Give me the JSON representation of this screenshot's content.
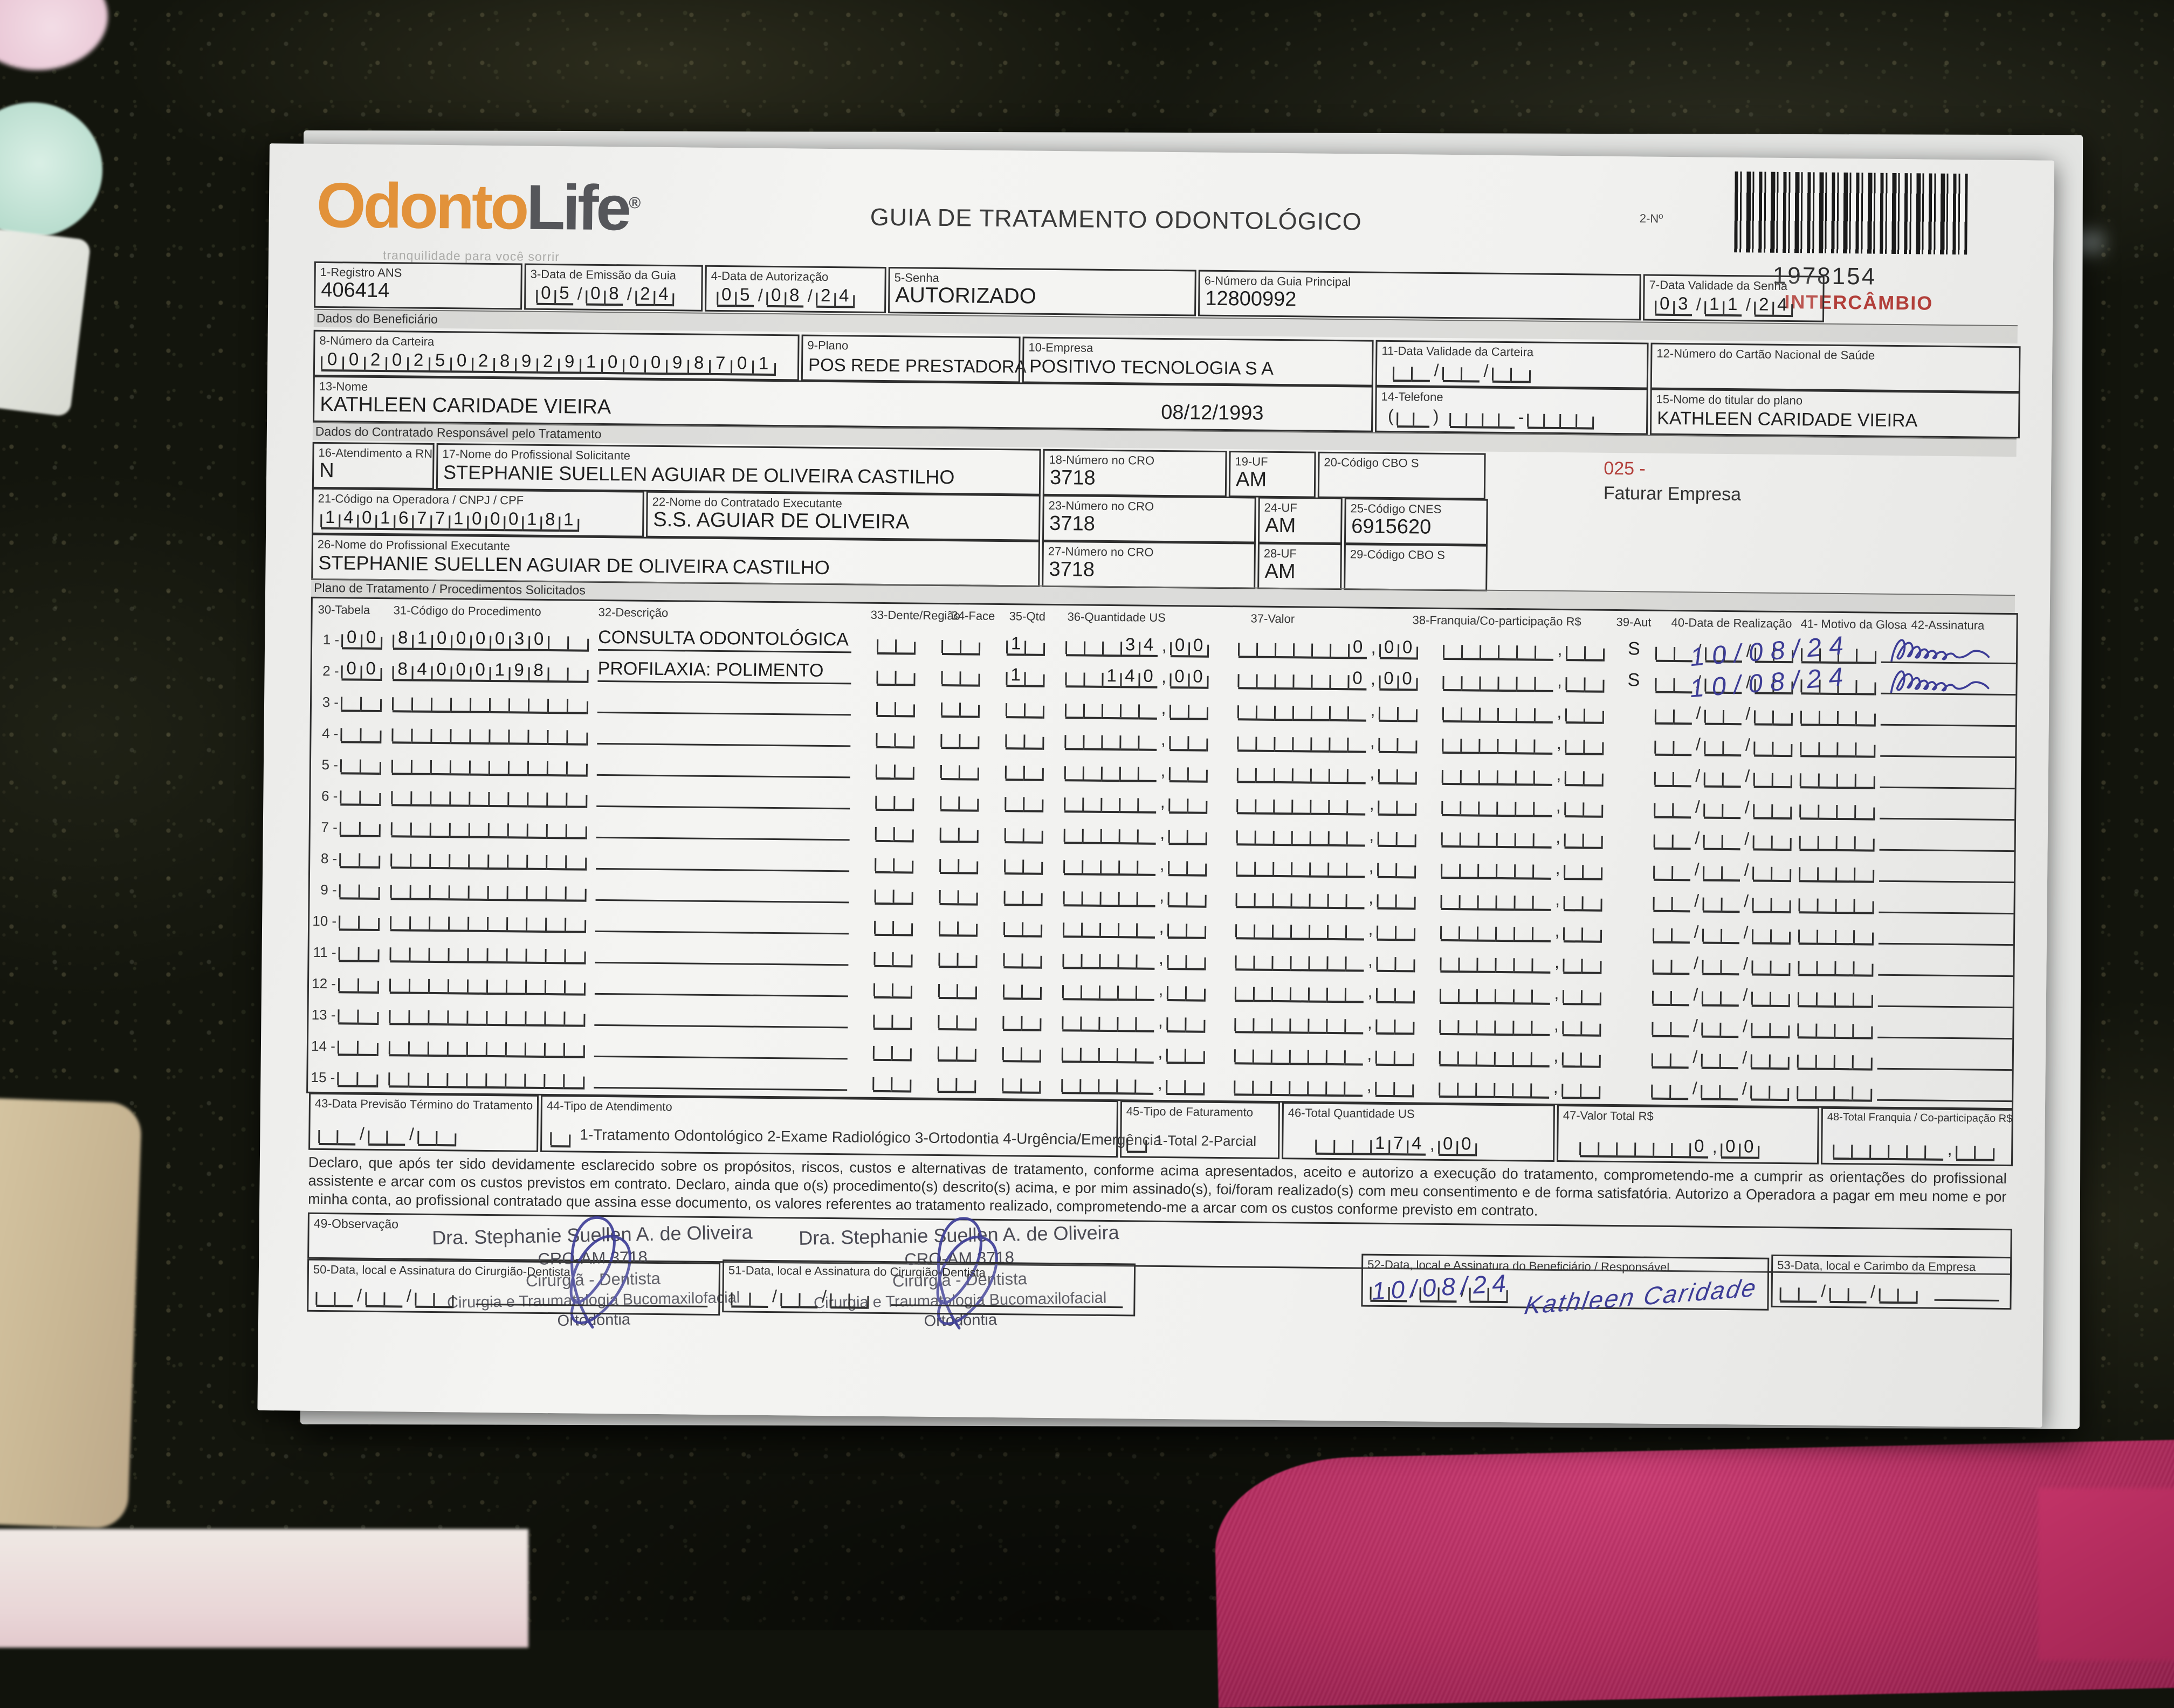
{
  "header": {
    "logo_odonto": "Odonto",
    "logo_life": "Life",
    "logo_reg": "®",
    "tagline": "tranquilidade para você sorrir",
    "title": "GUIA DE TRATAMENTO ODONTOLÓGICO",
    "doc_number_label": "2-Nº",
    "doc_number": "1978154",
    "stamp_intercambio": "INTERCÂMBIO"
  },
  "row1": {
    "f1_label": "1-Registro ANS",
    "f1_value": "406414",
    "f3_label": "3-Data de Emissão da Guia",
    "f3_value": "05/08/24",
    "f4_label": "4-Data de Autorização",
    "f4_value": "05/08/24",
    "f5_label": "5-Senha",
    "f5_value": "AUTORIZADO",
    "f6_label": "6-Número da Guia Principal",
    "f6_value": "12800992",
    "f7_label": "7-Data Validade da Senha",
    "f7_value": "03/11/24"
  },
  "beneficiario": {
    "section_label": "Dados do Beneficiário",
    "f8_label": "8-Número da Carteira",
    "f8_value": "002025028929100098701",
    "f9_label": "9-Plano",
    "f9_value": "POS REDE PRESTADORA",
    "f10_label": "10-Empresa",
    "f10_value": "POSITIVO TECNOLOGIA S A",
    "f11_label": "11-Data Validade da Carteira",
    "f11_value": "__/__/__",
    "f12_label": "12-Número do Cartão Nacional de Saúde",
    "f13_label": "13-Nome",
    "f13_value": "KATHLEEN CARIDADE VIEIRA",
    "f13_date": "08/12/1993",
    "f14_label": "14-Telefone",
    "f14_value": "(__) ____-____",
    "f15_label": "15-Nome do titular do plano",
    "f15_value": "KATHLEEN CARIDADE VIEIRA"
  },
  "contratado": {
    "section_label": "Dados do Contratado Responsável pelo Tratamento",
    "f16_label": "16-Atendimento a RN",
    "f16_value": "N",
    "f17_label": "17-Nome do Profissional Solicitante",
    "f17_value": "STEPHANIE SUELLEN AGUIAR DE OLIVEIRA CASTILHO",
    "f18_label": "18-Número no CRO",
    "f18_value": "3718",
    "f19_label": "19-UF",
    "f19_value": "AM",
    "f20_label": "20-Código CBO S",
    "note_code": "025 -",
    "note_text": "Faturar Empresa",
    "f21_label": "21-Código na Operadora / CNPJ / CPF",
    "f21_value": "14016771000181",
    "f22_label": "22-Nome do Contratado Executante",
    "f22_value": "S.S. AGUIAR DE OLIVEIRA",
    "f23_label": "23-Número no CRO",
    "f23_value": "3718",
    "f24_label": "24-UF",
    "f24_value": "AM",
    "f25_label": "25-Código CNES",
    "f25_value": "6915620",
    "f26_label": "26-Nome do Profissional Executante",
    "f26_value": "STEPHANIE SUELLEN AGUIAR DE OLIVEIRA CASTILHO",
    "f27_label": "27-Número no CRO",
    "f27_value": "3718",
    "f28_label": "28-UF",
    "f28_value": "AM",
    "f29_label": "29-Código CBO S"
  },
  "plano": {
    "section_label": "Plano de Tratamento / Procedimentos Solicitados",
    "headers": {
      "h30": "30-Tabela",
      "h31": "31-Código do Procedimento",
      "h32": "32-Descrição",
      "h33": "33-Dente/Região",
      "h34": "34-Face",
      "h35": "35-Qtd",
      "h36": "36-Quantidade US",
      "h37": "37-Valor",
      "h38": "38-Franquia/Co-participação R$",
      "h39": "39-Aut",
      "h40": "40-Data de Realização",
      "h41": "41- Motivo da Glosa",
      "h42": "42-Assinatura"
    },
    "rows": [
      {
        "num": "1 -",
        "tabela": "00",
        "codigo": "81000030__",
        "descricao": "CONSULTA ODONTOLÓGICA",
        "dente": "__",
        "face": "__",
        "qtd": "1_",
        "quantidade_us": "___34,00",
        "valor": "______0,00",
        "franquia": "______,__",
        "aut": "S",
        "data_realizacao": "__/__/__",
        "motivo": "____",
        "hand_date": "10/08/24",
        "hand_signature": "Kathleen"
      },
      {
        "num": "2 -",
        "tabela": "00",
        "codigo": "84000198__",
        "descricao": "PROFILAXIA: POLIMENTO",
        "dente": "__",
        "face": "__",
        "qtd": "1_",
        "quantidade_us": "__140,00",
        "valor": "______0,00",
        "franquia": "______,__",
        "aut": "S",
        "data_realizacao": "__/__/__",
        "motivo": "____",
        "hand_date": "10/08/24",
        "hand_signature": "Kathleen"
      }
    ],
    "empty_row": {
      "tabela": "__",
      "codigo": "__________",
      "dente": "__",
      "face": "__",
      "qtd": "__",
      "quantidade_us": "_____,__",
      "valor": "_______,__",
      "franquia": "______,__",
      "data_realizacao": "__/__/__",
      "motivo": "____"
    },
    "empty_row_numbers": [
      "3 -",
      "4 -",
      "5 -",
      "6 -",
      "7 -",
      "8 -",
      "9 -",
      "10 -",
      "11 -",
      "12 -",
      "13 -",
      "14 -",
      "15 -"
    ]
  },
  "rodape": {
    "f43_label": "43-Data Previsão Término do Tratamento",
    "f43_value": "__/__/__",
    "f44_label": "44-Tipo de Atendimento",
    "f44_check": "_",
    "f44_options": "1-Tratamento Odontológico  2-Exame Radiológico  3-Ortodontia  4-Urgência/Emergência",
    "f45_label": "45-Tipo de Faturamento",
    "f45_check": "_",
    "f45_options": "1-Total  2-Parcial",
    "f46_label": "46-Total Quantidade US",
    "f46_value": "___174,00",
    "f47_label": "47-Valor Total R$",
    "f47_value": "______0,00",
    "f48_label": "48-Total Franquia / Co-participação R$",
    "f48_value": "______,__",
    "declaracao": "Declaro, que após ter sido devidamente esclarecido sobre os propósitos, riscos, custos e alternativas de tratamento, conforme acima apresentados, aceito e autorizo a execução do tratamento, comprometendo-me a cumprir as orientações do profissional assistente e arcar com os custos previstos em contrato. Declaro, ainda que o(s) procedimento(s) descrito(s) acima, e por mim assinado(s), foi/foram realizado(s) com meu consentimento e de forma satisfatória. Autorizo a Operadora a pagar em meu nome e por minha conta, ao profissional contratado que assina esse documento, os valores referentes ao tratamento realizado, comprometendo-me a arcar com os custos conforme previsto em contrato.",
    "f49_label": "49-Observação"
  },
  "assinaturas": {
    "stamp_line1": "Dra. Stephanie Suellen A. de Oliveira",
    "stamp_line2": "CRO-AM 3718",
    "stamp_line3": "Cirurgiã - Dentista",
    "stamp_line4": "Cirurgia e Traumatologia Bucomaxilofacial",
    "stamp_line5": "Ortodontia",
    "f50_label": "50-Data, local e Assinatura do Cirurgião-Dentista",
    "f50_value": "__/__/__",
    "f51_label": "51-Data, local e Assinatura do Cirurgião-Dentista",
    "f51_value": "__/__/__",
    "f52_label": "52-Data, local e Assinatura do Beneficiário / Responsável",
    "f52_value": "__/__/__",
    "f52_hand_date": "10/08/24",
    "f52_hand_signature": "Kathleen Caridade",
    "f53_label": "53-Data, local e Carimbo da Empresa",
    "f53_value": "__/__/__"
  },
  "colors": {
    "logo_orange": "#e2923a",
    "logo_gray": "#55565a",
    "stamp_red": "#b23f3a",
    "ink_blue": "#3c3c96",
    "paper": "#f2f2f0",
    "granite": "#13150d",
    "fabric_pink": "#b02a5c"
  }
}
